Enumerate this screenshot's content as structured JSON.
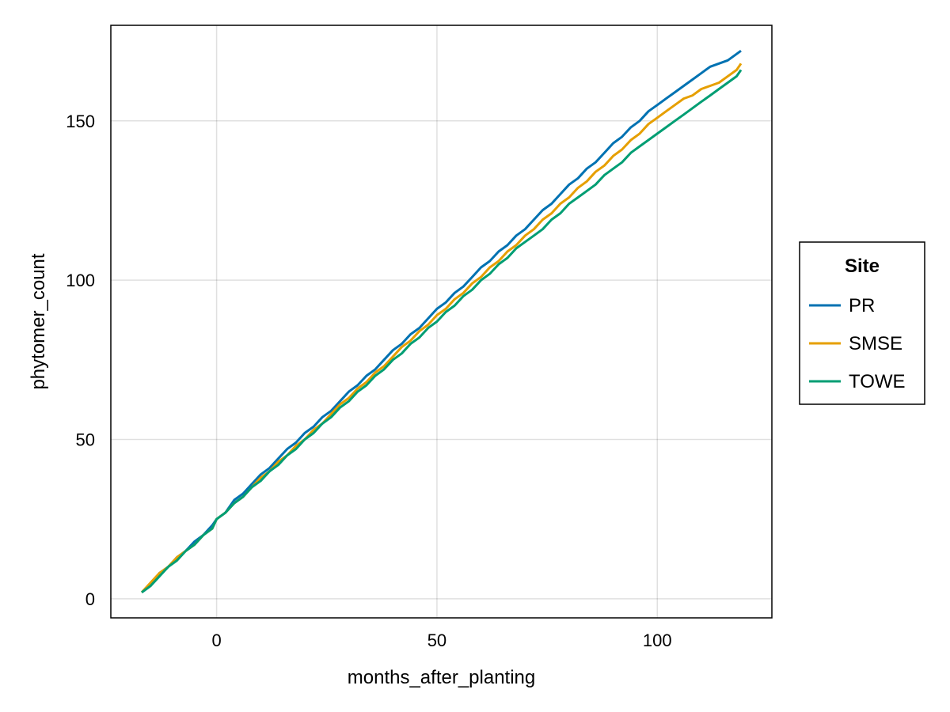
{
  "chart_data": {
    "type": "line",
    "title": "",
    "xlabel": "months_after_planting",
    "ylabel": "phytomer_count",
    "xlim": [
      -24,
      126
    ],
    "ylim": [
      -6,
      180
    ],
    "xticks": [
      0,
      50,
      100
    ],
    "yticks": [
      0,
      50,
      100,
      150
    ],
    "xtick_labels": [
      "0",
      "50",
      "100"
    ],
    "ytick_labels": [
      "0",
      "50",
      "100",
      "150"
    ],
    "grid": true,
    "legend": {
      "title": "Site",
      "position": "right"
    },
    "series": [
      {
        "name": "PR",
        "color": "#0072B2",
        "x": [
          -17,
          -15,
          -13,
          -11,
          -9,
          -7,
          -5,
          -3,
          -1,
          0,
          2,
          4,
          6,
          8,
          10,
          12,
          14,
          16,
          18,
          20,
          22,
          24,
          26,
          28,
          30,
          32,
          34,
          36,
          38,
          40,
          42,
          44,
          46,
          48,
          50,
          52,
          54,
          56,
          58,
          60,
          62,
          64,
          66,
          68,
          70,
          72,
          74,
          76,
          78,
          80,
          82,
          84,
          86,
          88,
          90,
          92,
          94,
          96,
          98,
          100,
          102,
          104,
          106,
          108,
          110,
          112,
          114,
          116,
          118,
          119
        ],
        "y": [
          2,
          4,
          8,
          10,
          13,
          15,
          18,
          20,
          23,
          25,
          27,
          31,
          33,
          36,
          39,
          41,
          44,
          47,
          49,
          52,
          54,
          57,
          59,
          62,
          65,
          67,
          70,
          72,
          75,
          78,
          80,
          83,
          85,
          88,
          91,
          93,
          96,
          98,
          101,
          104,
          106,
          109,
          111,
          114,
          116,
          119,
          122,
          124,
          127,
          130,
          132,
          135,
          137,
          140,
          143,
          145,
          148,
          150,
          153,
          155,
          157,
          159,
          161,
          163,
          165,
          167,
          168,
          169,
          171,
          172
        ]
      },
      {
        "name": "SMSE",
        "color": "#E69F00",
        "x": [
          -17,
          -15,
          -13,
          -11,
          -9,
          -7,
          -5,
          -3,
          -1,
          0,
          2,
          4,
          6,
          8,
          10,
          12,
          14,
          16,
          18,
          20,
          22,
          24,
          26,
          28,
          30,
          32,
          34,
          36,
          38,
          40,
          42,
          44,
          46,
          48,
          50,
          52,
          54,
          56,
          58,
          60,
          62,
          64,
          66,
          68,
          70,
          72,
          74,
          76,
          78,
          80,
          82,
          84,
          86,
          88,
          90,
          92,
          94,
          96,
          98,
          100,
          102,
          104,
          106,
          108,
          110,
          112,
          114,
          116,
          118,
          119
        ],
        "y": [
          2,
          5,
          8,
          10,
          13,
          15,
          17,
          20,
          22,
          25,
          27,
          30,
          32,
          35,
          38,
          40,
          43,
          45,
          48,
          50,
          53,
          55,
          58,
          61,
          63,
          66,
          68,
          71,
          73,
          76,
          79,
          81,
          84,
          86,
          89,
          91,
          94,
          96,
          99,
          101,
          104,
          106,
          109,
          111,
          114,
          116,
          119,
          121,
          124,
          126,
          129,
          131,
          134,
          136,
          139,
          141,
          144,
          146,
          149,
          151,
          153,
          155,
          157,
          158,
          160,
          161,
          162,
          164,
          166,
          168
        ]
      },
      {
        "name": "TOWE",
        "color": "#009E73",
        "x": [
          -17,
          -15,
          -13,
          -11,
          -9,
          -7,
          -5,
          -3,
          -1,
          0,
          2,
          4,
          6,
          8,
          10,
          12,
          14,
          16,
          18,
          20,
          22,
          24,
          26,
          28,
          30,
          32,
          34,
          36,
          38,
          40,
          42,
          44,
          46,
          48,
          50,
          52,
          54,
          56,
          58,
          60,
          62,
          64,
          66,
          68,
          70,
          72,
          74,
          76,
          78,
          80,
          82,
          84,
          86,
          88,
          90,
          92,
          94,
          96,
          98,
          100,
          102,
          104,
          106,
          108,
          110,
          112,
          114,
          116,
          118,
          119
        ],
        "y": [
          2,
          4,
          7,
          10,
          12,
          15,
          17,
          20,
          22,
          25,
          27,
          30,
          32,
          35,
          37,
          40,
          42,
          45,
          47,
          50,
          52,
          55,
          57,
          60,
          62,
          65,
          67,
          70,
          72,
          75,
          77,
          80,
          82,
          85,
          87,
          90,
          92,
          95,
          97,
          100,
          102,
          105,
          107,
          110,
          112,
          114,
          116,
          119,
          121,
          124,
          126,
          128,
          130,
          133,
          135,
          137,
          140,
          142,
          144,
          146,
          148,
          150,
          152,
          154,
          156,
          158,
          160,
          162,
          164,
          166
        ]
      }
    ]
  }
}
